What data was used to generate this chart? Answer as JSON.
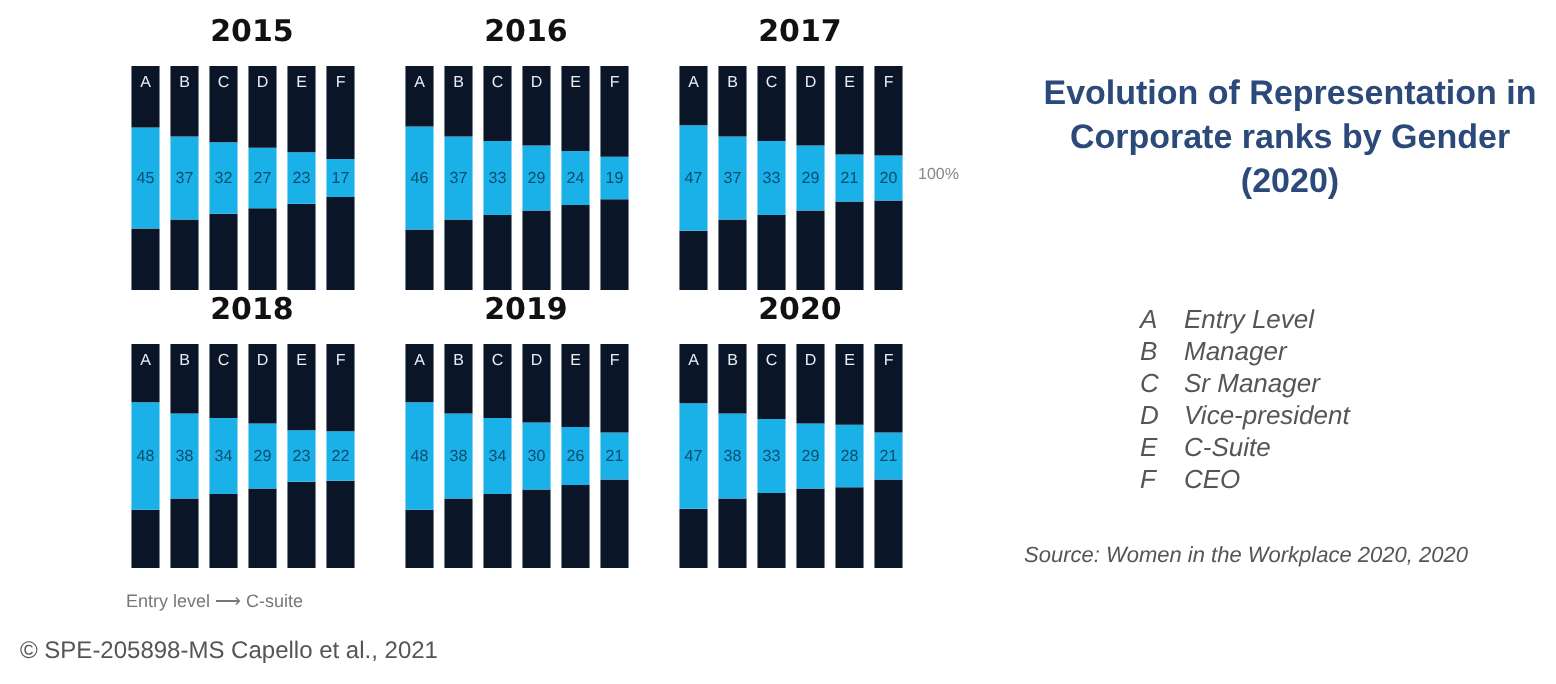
{
  "chart_data": [
    {
      "type": "bar",
      "title": "2015",
      "categories": [
        "A",
        "B",
        "C",
        "D",
        "E",
        "F"
      ],
      "stacked": true,
      "ylim": [
        0,
        100
      ],
      "tick_labels": "x",
      "series": [
        {
          "color": "#0a1628",
          "values": [
            27.5,
            31.5,
            34,
            36.5,
            38.5,
            41.5
          ]
        },
        {
          "color": "#1ab0e8",
          "values": [
            45,
            37,
            32,
            27,
            23,
            17
          ],
          "value_labels": [
            "45",
            "37",
            "32",
            "27",
            "23",
            "17"
          ]
        },
        {
          "color": "#0a1628",
          "values": [
            27.5,
            31.5,
            34,
            36.5,
            38.5,
            41.5
          ]
        }
      ]
    },
    {
      "type": "bar",
      "title": "2016",
      "categories": [
        "A",
        "B",
        "C",
        "D",
        "E",
        "F"
      ],
      "stacked": true,
      "ylim": [
        0,
        100
      ],
      "tick_labels": "x",
      "series": [
        {
          "color": "#0a1628",
          "values": [
            27,
            31.5,
            33.5,
            35.5,
            38,
            40.5
          ]
        },
        {
          "color": "#1ab0e8",
          "values": [
            46,
            37,
            33,
            29,
            24,
            19
          ],
          "value_labels": [
            "46",
            "37",
            "33",
            "29",
            "24",
            "19"
          ]
        },
        {
          "color": "#0a1628",
          "values": [
            27,
            31.5,
            33.5,
            35.5,
            38,
            40.5
          ]
        }
      ]
    },
    {
      "type": "bar",
      "title": "2017",
      "categories": [
        "A",
        "B",
        "C",
        "D",
        "E",
        "F"
      ],
      "stacked": true,
      "ylim": [
        0,
        100
      ],
      "tick_labels": "x",
      "annotations": [
        "100%"
      ],
      "series": [
        {
          "color": "#0a1628",
          "values": [
            26.5,
            31.5,
            33.5,
            35.5,
            39.5,
            40
          ]
        },
        {
          "color": "#1ab0e8",
          "values": [
            47,
            37,
            33,
            29,
            21,
            20
          ],
          "value_labels": [
            "47",
            "37",
            "33",
            "29",
            "21",
            "20"
          ]
        },
        {
          "color": "#0a1628",
          "values": [
            26.5,
            31.5,
            33.5,
            35.5,
            39.5,
            40
          ]
        }
      ]
    },
    {
      "type": "bar",
      "title": "2018",
      "xlabel": "Entry level ⟶ C-suite",
      "categories": [
        "A",
        "B",
        "C",
        "D",
        "E",
        "F"
      ],
      "stacked": true,
      "ylim": [
        0,
        100
      ],
      "tick_labels": "x",
      "series": [
        {
          "color": "#0a1628",
          "values": [
            26,
            31,
            33,
            35.5,
            38.5,
            39
          ]
        },
        {
          "color": "#1ab0e8",
          "values": [
            48,
            38,
            34,
            29,
            23,
            22
          ],
          "value_labels": [
            "48",
            "38",
            "34",
            "29",
            "23",
            "22"
          ]
        },
        {
          "color": "#0a1628",
          "values": [
            26,
            31,
            33,
            35.5,
            38.5,
            39
          ]
        }
      ]
    },
    {
      "type": "bar",
      "title": "2019",
      "categories": [
        "A",
        "B",
        "C",
        "D",
        "E",
        "F"
      ],
      "stacked": true,
      "ylim": [
        0,
        100
      ],
      "tick_labels": "x",
      "series": [
        {
          "color": "#0a1628",
          "values": [
            26,
            31,
            33,
            35,
            37,
            39.5
          ]
        },
        {
          "color": "#1ab0e8",
          "values": [
            48,
            38,
            34,
            30,
            26,
            21
          ],
          "value_labels": [
            "48",
            "38",
            "34",
            "30",
            "26",
            "21"
          ]
        },
        {
          "color": "#0a1628",
          "values": [
            26,
            31,
            33,
            35,
            37,
            39.5
          ]
        }
      ]
    },
    {
      "type": "bar",
      "title": "2020",
      "categories": [
        "A",
        "B",
        "C",
        "D",
        "E",
        "F"
      ],
      "stacked": true,
      "ylim": [
        0,
        100
      ],
      "tick_labels": "x",
      "series": [
        {
          "color": "#0a1628",
          "values": [
            26.5,
            31,
            33.5,
            35.5,
            36,
            39.5
          ]
        },
        {
          "color": "#1ab0e8",
          "values": [
            47,
            38,
            33,
            29,
            28,
            21
          ],
          "value_labels": [
            "47",
            "38",
            "33",
            "29",
            "28",
            "21"
          ]
        },
        {
          "color": "#0a1628",
          "values": [
            26.5,
            31,
            33.5,
            35.5,
            36,
            39.5
          ]
        }
      ]
    },
    {
      "type": "other",
      "title": "Evolution of Representation in Corporate ranks by Gender (2020)",
      "annotations": [
        "A Entry Level",
        "B Manager",
        "C Sr Manager",
        "D Vice-president",
        "E C-Suite",
        "F CEO",
        "Source: Women in the Workplace 2020, 2020",
        "© SPE-205898-MS Capello et al., 2021"
      ]
    }
  ]
}
